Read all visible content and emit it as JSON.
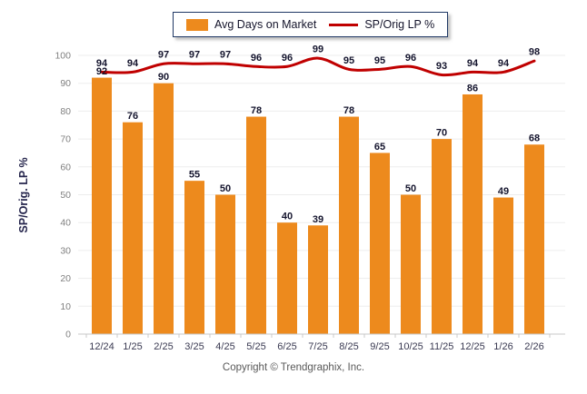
{
  "legend": {
    "bar_series_label": "Avg Days on Market",
    "line_series_label": "SP/Orig LP %"
  },
  "y_axis_title": "SP/Orig. LP %",
  "footer": {
    "copyright": "Copyright © Trendgraphix, Inc."
  },
  "colors": {
    "bar": "#ED8A1D",
    "line": "#C00000",
    "data_label": "#15152e",
    "x_tick_label": "#3a3a52",
    "y_tick_label": "#808080",
    "y_axis_title": "#26264d",
    "gridline": "#ededed",
    "axis_line": "#c9c9c9",
    "legend_border": "#1f3864"
  },
  "chart_data": {
    "type": "bar",
    "title": "",
    "categories": [
      "12/24",
      "1/25",
      "2/25",
      "3/25",
      "4/25",
      "5/25",
      "6/25",
      "7/25",
      "8/25",
      "9/25",
      "10/25",
      "11/25",
      "12/25",
      "1/26",
      "2/26"
    ],
    "series": [
      {
        "name": "Avg Days on Market",
        "type": "bar",
        "values": [
          92,
          76,
          90,
          55,
          50,
          78,
          40,
          39,
          78,
          65,
          50,
          70,
          86,
          49,
          68
        ]
      },
      {
        "name": "SP/Orig LP %",
        "type": "line",
        "values": [
          94,
          94,
          97,
          97,
          97,
          96,
          96,
          99,
          95,
          95,
          96,
          93,
          94,
          94,
          98
        ]
      }
    ],
    "xlabel": "",
    "ylabel": "SP/Orig. LP %",
    "ylim": [
      0,
      100
    ],
    "ytick_step": 10,
    "grid": true,
    "legend_position": "top",
    "data_labels": true
  }
}
